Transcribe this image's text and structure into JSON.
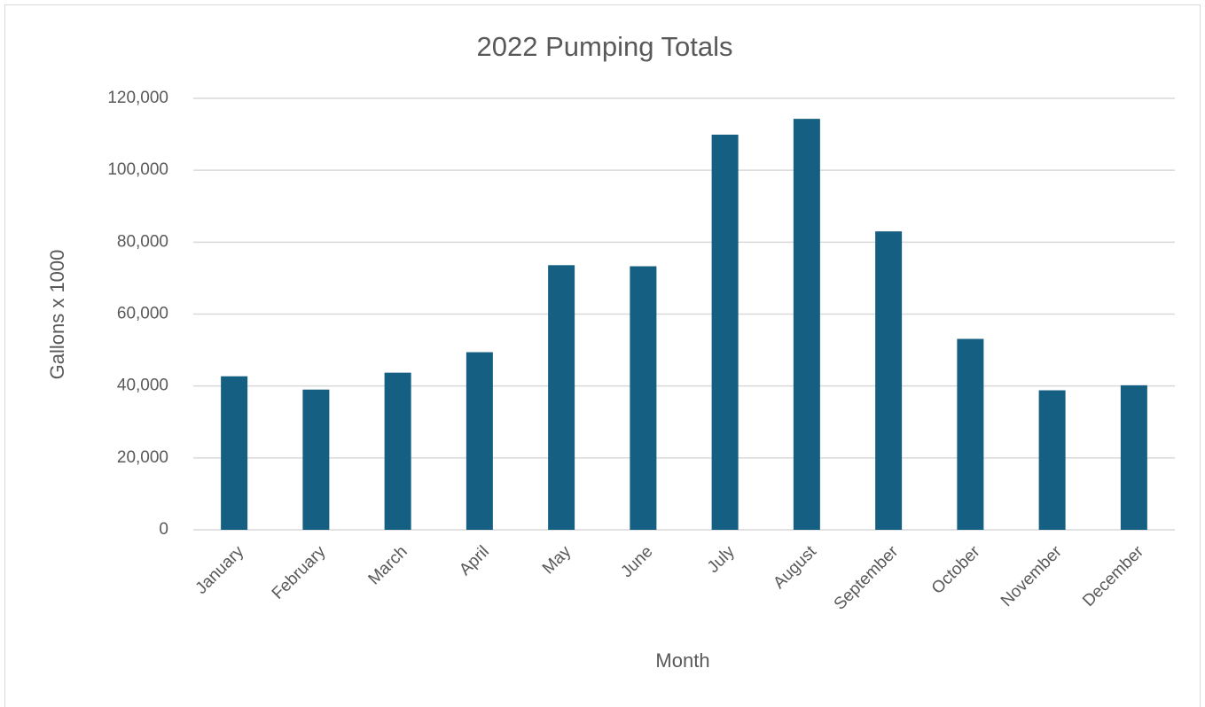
{
  "chart_data": {
    "type": "bar",
    "title": "2022 Pumping Totals",
    "x_label": "Month",
    "y_label": "Gallons x 1000",
    "categories": [
      "January",
      "February",
      "March",
      "April",
      "May",
      "June",
      "July",
      "August",
      "September",
      "October",
      "November",
      "December"
    ],
    "values": [
      42700,
      39000,
      43700,
      49400,
      73600,
      73300,
      109900,
      114300,
      83000,
      53100,
      38800,
      40200
    ],
    "color": "#156082",
    "ylim": [
      0,
      120000
    ],
    "yticks": [
      0,
      {
        "value": 20000,
        "label": "20,000"
      },
      {
        "value": 40000,
        "label": "40,000"
      },
      {
        "value": 60000,
        "label": "60,000"
      },
      {
        "value": 80000,
        "label": "80,000"
      },
      {
        "value": 100000,
        "label": "100,000"
      },
      {
        "value": 120000,
        "label": "120,000"
      }
    ],
    "grid": true
  }
}
